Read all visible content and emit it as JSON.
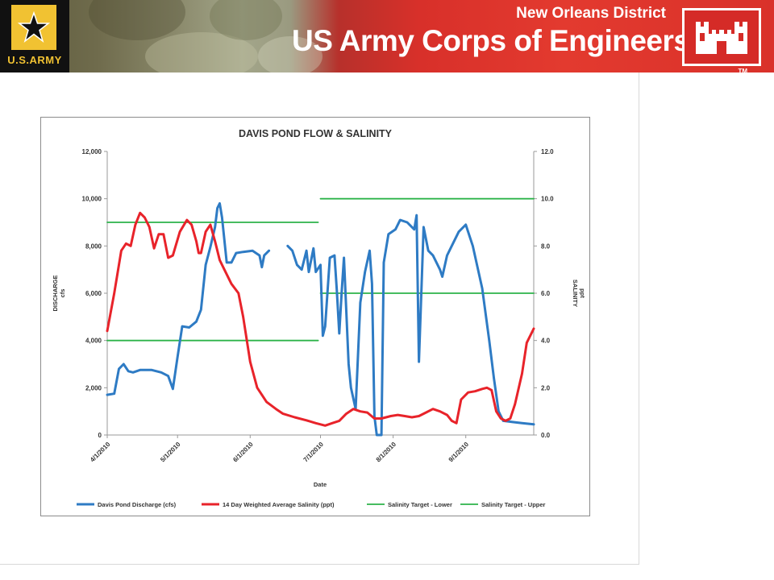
{
  "header": {
    "district": "New Orleans District",
    "organization": "US Army Corps of Engineers",
    "army_logo_text": "U.S.ARMY",
    "trademark": "TM",
    "army_logo_icon": "army-star-icon",
    "usace_logo_icon": "castle-icon",
    "colors": {
      "banner_red": "#d9312a",
      "army_gold": "#f1c232"
    }
  },
  "chart_data": {
    "type": "line",
    "title": "DAVIS POND FLOW & SALINITY",
    "xlabel": "Date",
    "ylabel": "DISCHARGE\ncfs",
    "y2label": "SALINITY\nppt",
    "x_ticks": [
      "4/1/2010",
      "5/1/2010",
      "6/1/2010",
      "7/1/2010",
      "8/1/2010",
      "9/1/2010"
    ],
    "x_range": [
      "2010-04-01",
      "2010-09-30"
    ],
    "ylim": [
      0,
      12000
    ],
    "y_ticks": [
      "0",
      "2,000",
      "4,000",
      "6,000",
      "8,000",
      "10,000",
      "12,000"
    ],
    "y2lim": [
      0,
      12
    ],
    "y2_ticks": [
      "0.0",
      "2.0",
      "4.0",
      "6.0",
      "8.0",
      "10.0",
      "12.0"
    ],
    "grid": false,
    "legend_position": "bottom",
    "series": [
      {
        "name": "Davis Pond Discharge (cfs)",
        "axis": "left",
        "color": "#2e7bc4",
        "segments": [
          [
            [
              "2010-04-01",
              1700
            ],
            [
              "2010-04-04",
              1750
            ],
            [
              "2010-04-06",
              2800
            ],
            [
              "2010-04-08",
              3000
            ],
            [
              "2010-04-10",
              2700
            ],
            [
              "2010-04-12",
              2650
            ],
            [
              "2010-04-15",
              2750
            ],
            [
              "2010-04-20",
              2750
            ],
            [
              "2010-04-24",
              2650
            ],
            [
              "2010-04-27",
              2500
            ],
            [
              "2010-04-29",
              1950
            ],
            [
              "2010-05-01",
              3300
            ],
            [
              "2010-05-03",
              4600
            ],
            [
              "2010-05-06",
              4550
            ],
            [
              "2010-05-09",
              4800
            ],
            [
              "2010-05-11",
              5300
            ],
            [
              "2010-05-13",
              7200
            ],
            [
              "2010-05-15",
              7950
            ],
            [
              "2010-05-17",
              8800
            ],
            [
              "2010-05-18",
              9600
            ],
            [
              "2010-05-19",
              9800
            ],
            [
              "2010-05-20",
              9200
            ],
            [
              "2010-05-22",
              7300
            ],
            [
              "2010-05-24",
              7300
            ],
            [
              "2010-05-26",
              7700
            ],
            [
              "2010-05-29",
              7750
            ],
            [
              "2010-06-02",
              7800
            ],
            [
              "2010-06-05",
              7600
            ],
            [
              "2010-06-06",
              7100
            ],
            [
              "2010-06-07",
              7600
            ],
            [
              "2010-06-09",
              7800
            ]
          ],
          [
            [
              "2010-06-17",
              8000
            ],
            [
              "2010-06-19",
              7800
            ],
            [
              "2010-06-21",
              7200
            ],
            [
              "2010-06-23",
              7000
            ],
            [
              "2010-06-25",
              7800
            ],
            [
              "2010-06-26",
              6900
            ],
            [
              "2010-06-28",
              7900
            ],
            [
              "2010-06-29",
              6900
            ],
            [
              "2010-07-01",
              7200
            ],
            [
              "2010-07-02",
              4200
            ],
            [
              "2010-07-03",
              4600
            ],
            [
              "2010-07-05",
              7500
            ],
            [
              "2010-07-07",
              7600
            ],
            [
              "2010-07-08",
              6100
            ],
            [
              "2010-07-09",
              4300
            ],
            [
              "2010-07-10",
              6000
            ],
            [
              "2010-07-11",
              7500
            ],
            [
              "2010-07-13",
              3000
            ],
            [
              "2010-07-14",
              2000
            ],
            [
              "2010-07-16",
              1100
            ],
            [
              "2010-07-18",
              5600
            ],
            [
              "2010-07-20",
              6900
            ],
            [
              "2010-07-22",
              7800
            ],
            [
              "2010-07-23",
              6400
            ],
            [
              "2010-07-24",
              800
            ],
            [
              "2010-07-25",
              0
            ],
            [
              "2010-07-27",
              0
            ],
            [
              "2010-07-28",
              7300
            ],
            [
              "2010-07-30",
              8500
            ],
            [
              "2010-08-02",
              8700
            ],
            [
              "2010-08-04",
              9100
            ],
            [
              "2010-08-07",
              9000
            ],
            [
              "2010-08-10",
              8700
            ],
            [
              "2010-08-11",
              9300
            ],
            [
              "2010-08-12",
              3100
            ],
            [
              "2010-08-14",
              8800
            ],
            [
              "2010-08-16",
              7800
            ],
            [
              "2010-08-18",
              7600
            ],
            [
              "2010-08-21",
              7000
            ],
            [
              "2010-08-22",
              6700
            ],
            [
              "2010-08-24",
              7600
            ],
            [
              "2010-08-26",
              8000
            ],
            [
              "2010-08-29",
              8600
            ],
            [
              "2010-09-01",
              8900
            ],
            [
              "2010-09-04",
              8000
            ],
            [
              "2010-09-08",
              6200
            ],
            [
              "2010-09-11",
              4000
            ],
            [
              "2010-09-13",
              2400
            ],
            [
              "2010-09-15",
              1000
            ],
            [
              "2010-09-17",
              600
            ],
            [
              "2010-09-21",
              550
            ],
            [
              "2010-09-25",
              500
            ],
            [
              "2010-09-30",
              450
            ]
          ]
        ]
      },
      {
        "name": "14 Day Weighted Average Salinity (ppt)",
        "axis": "right",
        "color": "#e8232a",
        "segments": [
          [
            [
              "2010-04-01",
              4.4
            ],
            [
              "2010-04-04",
              6.0
            ],
            [
              "2010-04-07",
              7.8
            ],
            [
              "2010-04-09",
              8.1
            ],
            [
              "2010-04-11",
              8.0
            ],
            [
              "2010-04-13",
              8.9
            ],
            [
              "2010-04-15",
              9.4
            ],
            [
              "2010-04-17",
              9.2
            ],
            [
              "2010-04-19",
              8.8
            ],
            [
              "2010-04-21",
              7.9
            ],
            [
              "2010-04-23",
              8.5
            ],
            [
              "2010-04-25",
              8.5
            ],
            [
              "2010-04-27",
              7.5
            ],
            [
              "2010-04-29",
              7.6
            ],
            [
              "2010-05-02",
              8.6
            ],
            [
              "2010-05-05",
              9.1
            ],
            [
              "2010-05-07",
              8.9
            ],
            [
              "2010-05-09",
              8.2
            ],
            [
              "2010-05-10",
              7.7
            ],
            [
              "2010-05-11",
              7.7
            ],
            [
              "2010-05-13",
              8.6
            ],
            [
              "2010-05-15",
              8.9
            ],
            [
              "2010-05-17",
              8.2
            ],
            [
              "2010-05-19",
              7.4
            ],
            [
              "2010-05-21",
              7.0
            ],
            [
              "2010-05-24",
              6.4
            ],
            [
              "2010-05-27",
              6.0
            ],
            [
              "2010-05-29",
              5.0
            ],
            [
              "2010-06-01",
              3.1
            ],
            [
              "2010-06-04",
              2.0
            ],
            [
              "2010-06-08",
              1.4
            ],
            [
              "2010-06-12",
              1.1
            ],
            [
              "2010-06-15",
              0.9
            ],
            [
              "2010-06-20",
              0.75
            ],
            [
              "2010-06-25",
              0.62
            ],
            [
              "2010-06-29",
              0.5
            ],
            [
              "2010-07-03",
              0.4
            ],
            [
              "2010-07-06",
              0.5
            ],
            [
              "2010-07-09",
              0.6
            ],
            [
              "2010-07-12",
              0.9
            ],
            [
              "2010-07-15",
              1.1
            ],
            [
              "2010-07-18",
              1.0
            ],
            [
              "2010-07-21",
              0.95
            ],
            [
              "2010-07-24",
              0.7
            ],
            [
              "2010-07-27",
              0.7
            ],
            [
              "2010-07-31",
              0.8
            ],
            [
              "2010-08-03",
              0.85
            ],
            [
              "2010-08-06",
              0.8
            ],
            [
              "2010-08-09",
              0.75
            ],
            [
              "2010-08-12",
              0.8
            ],
            [
              "2010-08-15",
              0.95
            ],
            [
              "2010-08-18",
              1.1
            ],
            [
              "2010-08-21",
              1.0
            ],
            [
              "2010-08-24",
              0.85
            ],
            [
              "2010-08-26",
              0.6
            ],
            [
              "2010-08-28",
              0.5
            ],
            [
              "2010-08-30",
              1.5
            ],
            [
              "2010-09-02",
              1.8
            ],
            [
              "2010-09-05",
              1.85
            ],
            [
              "2010-09-08",
              1.95
            ],
            [
              "2010-09-10",
              2.0
            ],
            [
              "2010-09-12",
              1.9
            ],
            [
              "2010-09-14",
              1.0
            ],
            [
              "2010-09-16",
              0.7
            ],
            [
              "2010-09-18",
              0.6
            ],
            [
              "2010-09-20",
              0.7
            ],
            [
              "2010-09-22",
              1.3
            ],
            [
              "2010-09-25",
              2.6
            ],
            [
              "2010-09-27",
              3.9
            ],
            [
              "2010-09-30",
              4.5
            ]
          ]
        ]
      },
      {
        "name": "Salinity Target - Lower",
        "axis": "left",
        "color": "#2db34a",
        "segments": [
          [
            [
              "2010-04-01",
              4000
            ],
            [
              "2010-06-30",
              4000
            ]
          ],
          [
            [
              "2010-07-01",
              6000
            ],
            [
              "2010-09-30",
              6000
            ]
          ],
          [
            [
              "2010-04-01",
              9000
            ],
            [
              "2010-06-30",
              9000
            ]
          ]
        ]
      },
      {
        "name": "Salinity Target - Upper",
        "axis": "left",
        "color": "#2db34a",
        "segments": [
          [
            [
              "2010-07-01",
              10000
            ],
            [
              "2010-09-30",
              10000
            ]
          ]
        ]
      }
    ]
  }
}
